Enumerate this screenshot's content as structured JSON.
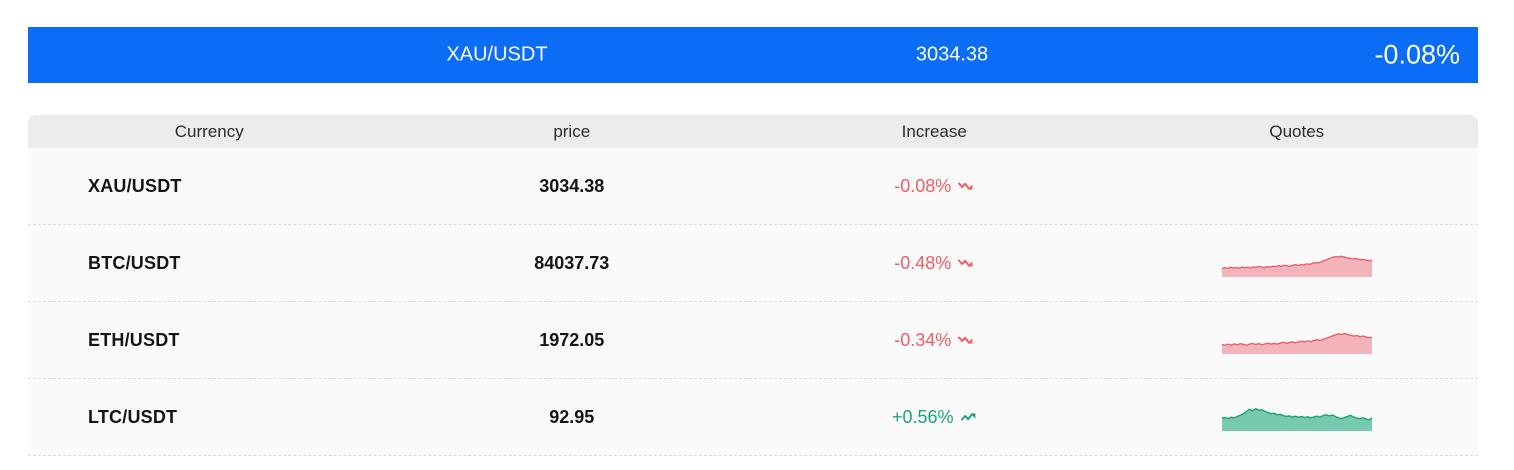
{
  "ticker_banner": {
    "pair": "XAU/USDT",
    "price": "3034.38",
    "change": "-0.08%",
    "bg_color": "#0b6cf5",
    "text_color": "#ffffff"
  },
  "table": {
    "columns": [
      "Currency",
      "price",
      "Increase",
      "Quotes"
    ],
    "rows": [
      {
        "currency": "XAU/USDT",
        "price": "3034.38",
        "change": "-0.08%",
        "direction": "down",
        "sparkline": null
      },
      {
        "currency": "BTC/USDT",
        "price": "84037.73",
        "change": "-0.48%",
        "direction": "down",
        "sparkline": [
          30,
          33,
          31,
          35,
          32,
          34,
          31,
          36,
          33,
          35,
          32,
          36,
          34,
          38,
          35,
          33,
          37,
          35,
          39,
          37,
          41,
          38,
          42,
          40,
          38,
          42,
          44,
          41,
          45,
          43,
          47,
          45,
          49,
          52,
          50,
          54,
          58,
          62,
          66,
          70,
          73,
          71,
          74,
          72,
          69,
          67,
          65,
          66,
          64,
          62,
          63,
          60,
          57,
          60
        ]
      },
      {
        "currency": "ETH/USDT",
        "price": "1972.05",
        "change": "-0.34%",
        "direction": "down",
        "sparkline": [
          34,
          31,
          35,
          32,
          36,
          33,
          37,
          34,
          31,
          35,
          38,
          34,
          37,
          33,
          36,
          39,
          35,
          38,
          35,
          39,
          42,
          38,
          41,
          44,
          40,
          43,
          46,
          43,
          47,
          44,
          48,
          51,
          48,
          52,
          56,
          60,
          64,
          68,
          72,
          70,
          73,
          70,
          67,
          64,
          66,
          62,
          64,
          61,
          58,
          60
        ]
      },
      {
        "currency": "LTC/USDT",
        "price": "92.95",
        "change": "+0.56%",
        "direction": "up",
        "sparkline": [
          46,
          48,
          45,
          49,
          47,
          52,
          56,
          62,
          70,
          78,
          72,
          80,
          74,
          76,
          70,
          66,
          62,
          64,
          58,
          60,
          55,
          52,
          54,
          50,
          53,
          49,
          52,
          48,
          51,
          47,
          50,
          53,
          49,
          55,
          58,
          54,
          57,
          52,
          47,
          44,
          48,
          52,
          56,
          50,
          46,
          44,
          47,
          43,
          40,
          46
        ]
      }
    ]
  },
  "colors": {
    "up": "#18a678",
    "down": "#f45c63",
    "spark_down_line": "#ec5f6e",
    "spark_down_fill": "rgba(236,95,110,0.45)",
    "spark_up_line": "#18a678",
    "spark_up_fill": "rgba(24,166,120,0.58)",
    "header_bg": "#ececec",
    "row_bg": "#fafafa",
    "divider": "#dcdcdc"
  }
}
